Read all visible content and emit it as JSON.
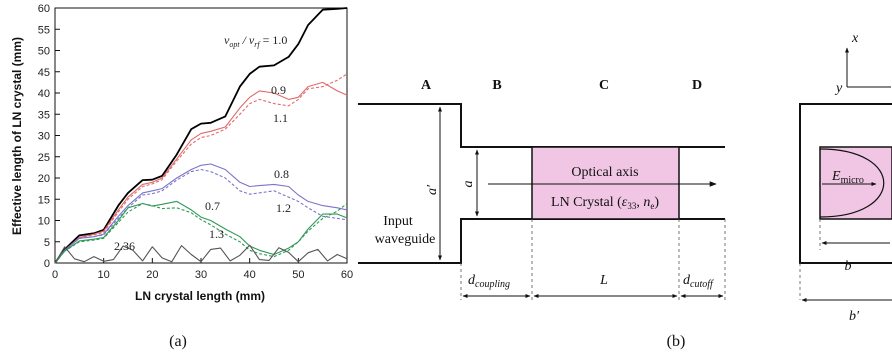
{
  "chart_data": {
    "type": "line",
    "xlabel": "LN crystal length (mm)",
    "ylabel": "Effective length of LN crystal (mm)",
    "xlim": [
      0,
      60
    ],
    "ylim": [
      0,
      60
    ],
    "xticks": [
      "0",
      "10",
      "20",
      "30",
      "40",
      "50",
      "60"
    ],
    "yticks": [
      "0",
      "5",
      "10",
      "15",
      "20",
      "25",
      "30",
      "35",
      "40",
      "45",
      "50",
      "55",
      "60"
    ],
    "grid": false,
    "legend": "none",
    "series": [
      {
        "name": "1.0",
        "color": "#000000",
        "style": "solid",
        "x": [
          0,
          2,
          5,
          8,
          10,
          13,
          15,
          18,
          20,
          22,
          25,
          28,
          30,
          32,
          35,
          38,
          40,
          42,
          45,
          48,
          50,
          52,
          55,
          58,
          60
        ],
        "y": [
          0,
          3.2,
          6.5,
          7,
          7.8,
          13.5,
          16.5,
          19.5,
          19.6,
          20.5,
          25.5,
          31.5,
          32.8,
          33,
          34.5,
          41.5,
          44.5,
          46.2,
          46.5,
          48.5,
          51.5,
          56,
          59.6,
          59.8,
          60
        ]
      },
      {
        "name": "0.9",
        "color": "#e06a6a",
        "style": "solid",
        "x": [
          0,
          2,
          5,
          8,
          10,
          13,
          15,
          18,
          20,
          22,
          25,
          28,
          30,
          32,
          35,
          38,
          40,
          42,
          45,
          48,
          50,
          52,
          55,
          58,
          60
        ],
        "y": [
          0,
          3,
          6,
          6.8,
          7.5,
          12.5,
          15.5,
          18.5,
          19,
          20,
          24.5,
          29,
          30.5,
          31,
          32,
          36.5,
          39,
          40.5,
          40,
          38.5,
          39,
          41.5,
          42.5,
          40.5,
          39.5
        ]
      },
      {
        "name": "1.1",
        "color": "#e06a6a",
        "style": "dashed",
        "x": [
          0,
          2,
          5,
          8,
          10,
          13,
          15,
          18,
          20,
          22,
          25,
          28,
          30,
          32,
          35,
          38,
          40,
          42,
          45,
          48,
          50,
          52,
          55,
          58,
          60
        ],
        "y": [
          0,
          3,
          6,
          6.6,
          7.2,
          12,
          15,
          18,
          18.6,
          19.6,
          24,
          28,
          29.5,
          30,
          31.5,
          35,
          37.5,
          38.5,
          37.5,
          37,
          38.5,
          41,
          41.5,
          43,
          44.5
        ]
      },
      {
        "name": "0.8",
        "color": "#7b74c9",
        "style": "solid",
        "x": [
          0,
          2,
          5,
          8,
          10,
          13,
          15,
          18,
          20,
          22,
          25,
          28,
          30,
          32,
          35,
          38,
          40,
          42,
          45,
          48,
          50,
          52,
          55,
          58,
          60
        ],
        "y": [
          0,
          3,
          5.8,
          6.2,
          6.8,
          11,
          13.5,
          16.5,
          17,
          17.5,
          20,
          22,
          23,
          23.3,
          22,
          19,
          18,
          18.2,
          18.5,
          18,
          16,
          14.5,
          13.5,
          13,
          12.5
        ]
      },
      {
        "name": "1.2",
        "color": "#7b74c9",
        "style": "dashed",
        "x": [
          0,
          2,
          5,
          8,
          10,
          13,
          15,
          18,
          20,
          22,
          25,
          28,
          30,
          32,
          35,
          38,
          40,
          42,
          45,
          48,
          50,
          52,
          55,
          58,
          60
        ],
        "y": [
          0,
          3,
          5.8,
          6.2,
          6.6,
          10.5,
          13,
          16,
          16.3,
          17,
          19.5,
          21.5,
          22,
          21.5,
          20,
          17,
          16.2,
          16.5,
          17,
          15.5,
          14.5,
          13,
          11,
          10.5,
          10.2
        ]
      },
      {
        "name": "0.7",
        "color": "#2e9a55",
        "style": "solid",
        "x": [
          0,
          2,
          5,
          8,
          10,
          13,
          15,
          18,
          20,
          22,
          25,
          28,
          30,
          32,
          35,
          38,
          40,
          42,
          45,
          48,
          50,
          52,
          55,
          58,
          60
        ],
        "y": [
          0,
          2.8,
          5.2,
          5.6,
          6,
          10,
          13,
          14,
          13.4,
          13.8,
          14.5,
          12.5,
          10.8,
          10,
          8,
          6.2,
          4,
          3,
          2,
          3.5,
          5,
          8,
          11.5,
          11.5,
          10.6
        ]
      },
      {
        "name": "1.3",
        "color": "#2e9a55",
        "style": "dashed",
        "x": [
          0,
          2,
          5,
          8,
          10,
          13,
          15,
          18,
          20,
          22,
          25,
          28,
          30,
          32,
          35,
          38,
          40,
          42,
          45,
          48,
          50,
          52,
          55,
          58,
          60
        ],
        "y": [
          0,
          2.8,
          5,
          5.4,
          5.8,
          9.5,
          12,
          14,
          13.5,
          12.8,
          13,
          11.8,
          10.2,
          9,
          6.8,
          5,
          3,
          2.2,
          1.5,
          3,
          5,
          7.5,
          10.5,
          12.2,
          14
        ]
      },
      {
        "name": "2.36",
        "color": "#555555",
        "style": "solid",
        "x": [
          0,
          2,
          4,
          6,
          8,
          10,
          12,
          14,
          16,
          18,
          20,
          22,
          24,
          26,
          28,
          30,
          32,
          34,
          36,
          38,
          40,
          42,
          44,
          46,
          48,
          50,
          52,
          54,
          56,
          58,
          60
        ],
        "y": [
          0,
          3.8,
          1,
          0.3,
          1.5,
          0.4,
          0.8,
          4,
          3,
          0.5,
          3.8,
          1.2,
          0.3,
          4.1,
          2,
          0.3,
          3.2,
          3.5,
          0.5,
          1.8,
          4.2,
          0.8,
          0.6,
          3.6,
          2.5,
          0.3,
          2.4,
          3.2,
          0.5,
          2,
          1
        ]
      }
    ],
    "label_ratio": "v",
    "label_ratio_sub1": "opt",
    "label_ratio_sub2": "rf",
    "label_prefix_eq": " = 1.0",
    "labels": [
      "0.9",
      "1.1",
      "0.8",
      "1.2",
      "0.7",
      "1.3",
      "2.36"
    ],
    "panel_label": "(a)"
  },
  "diagram": {
    "sections": [
      "A",
      "B",
      "C",
      "D"
    ],
    "input_waveguide": [
      "Input",
      "waveguide"
    ],
    "crystal_line1": "Optical axis",
    "crystal_line2_prefix": "LN Crystal (",
    "crystal_eps": "ε",
    "crystal_eps_sub": "33",
    "crystal_sep": ", ",
    "crystal_n": "n",
    "crystal_n_sub": "e",
    "crystal_close": ")",
    "a_prime": "a′",
    "a": "a",
    "d": "d",
    "d_coupling_sub": "coupling",
    "L": "L",
    "d_cutoff_sub": "cutoff",
    "x_axis": "x",
    "y_axis": "y",
    "E": "E",
    "E_sub": "micro",
    "b": "b",
    "b_prime": "b′",
    "panel_label": "(b)",
    "crystal_fill": "#f1c6e4"
  }
}
